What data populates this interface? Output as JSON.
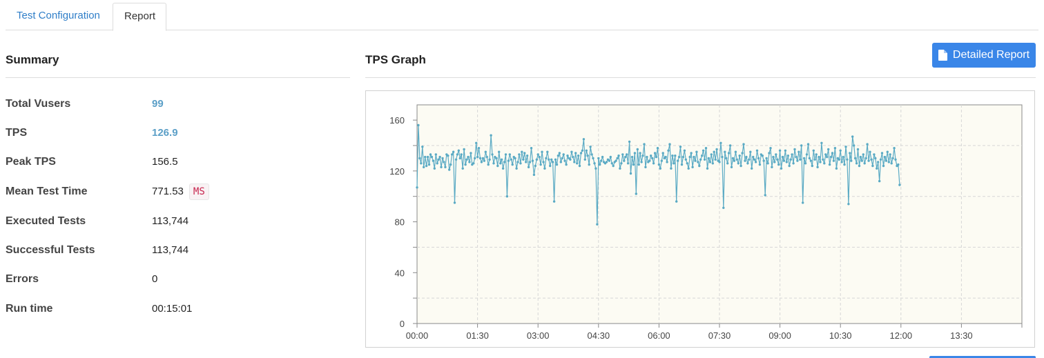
{
  "tabs": [
    {
      "label": "Test Configuration",
      "active": false
    },
    {
      "label": "Report",
      "active": true
    }
  ],
  "summary": {
    "title": "Summary",
    "rows": [
      {
        "label": "Total Vusers",
        "value": "99"
      },
      {
        "label": "TPS",
        "value": "126.9"
      },
      {
        "label": "Peak TPS",
        "value": "156.5"
      },
      {
        "label": "Mean Test Time",
        "value": "771.53",
        "unit": "MS"
      },
      {
        "label": "Executed Tests",
        "value": "113,744"
      },
      {
        "label": "Successful Tests",
        "value": "113,744"
      },
      {
        "label": "Errors",
        "value": "0"
      },
      {
        "label": "Run time",
        "value": "00:15:01"
      }
    ]
  },
  "graph": {
    "title": "TPS Graph",
    "detailed_report_label": "Detailed Report",
    "icons": {
      "report_button": "document-icon"
    }
  },
  "colors": {
    "accent": "#3a86e8",
    "link_value": "#5b9fc7",
    "series_line": "#5aaac4",
    "plot_background": "#fcfbf3",
    "unit_badge_text": "#c7254e"
  },
  "chart_data": {
    "type": "line",
    "title": "TPS Graph",
    "xlabel": "",
    "ylabel": "",
    "x_tick_labels": [
      "00:00",
      "01:30",
      "03:00",
      "04:30",
      "06:00",
      "07:30",
      "09:00",
      "10:30",
      "12:00",
      "13:30"
    ],
    "y_ticks": [
      0,
      40,
      80,
      120,
      160
    ],
    "ylim": [
      0,
      172
    ],
    "x_range_seconds": [
      0,
      900
    ],
    "grid": true,
    "sample_interval_seconds": 2,
    "series": [
      {
        "values": [
          107,
          156,
          130,
          126,
          139,
          123,
          131,
          124,
          131,
          125,
          133,
          131,
          128,
          122,
          133,
          126,
          129,
          131,
          123,
          130,
          127,
          123,
          133,
          132,
          121,
          125,
          133,
          135,
          95,
          129,
          133,
          136,
          130,
          133,
          122,
          137,
          125,
          129,
          131,
          127,
          134,
          125,
          126,
          130,
          142,
          131,
          138,
          130,
          127,
          130,
          128,
          135,
          131,
          125,
          129,
          148,
          133,
          126,
          131,
          130,
          124,
          135,
          126,
          129,
          122,
          127,
          133,
          100,
          128,
          133,
          129,
          125,
          131,
          130,
          122,
          127,
          133,
          126,
          135,
          129,
          134,
          127,
          132,
          123,
          127,
          138,
          128,
          117,
          124,
          129,
          133,
          131,
          125,
          135,
          127,
          122,
          130,
          135,
          129,
          124,
          129,
          127,
          96,
          129,
          125,
          132,
          134,
          127,
          130,
          133,
          128,
          125,
          132,
          130,
          129,
          135,
          131,
          127,
          134,
          126,
          132,
          124,
          134,
          136,
          145,
          129,
          136,
          132,
          125,
          139,
          133,
          130,
          126,
          122,
          78,
          130,
          125,
          128,
          131,
          127,
          126,
          127,
          129,
          128,
          131,
          126,
          124,
          127,
          128,
          130,
          132,
          122,
          126,
          133,
          128,
          131,
          133,
          126,
          143,
          118,
          131,
          125,
          134,
          102,
          137,
          125,
          134,
          127,
          132,
          141,
          123,
          131,
          127,
          128,
          132,
          130,
          126,
          134,
          131,
          138,
          125,
          122,
          128,
          134,
          130,
          131,
          127,
          136,
          141,
          122,
          132,
          126,
          132,
          96,
          128,
          131,
          139,
          125,
          131,
          136,
          129,
          126,
          122,
          131,
          134,
          123,
          131,
          128,
          135,
          127,
          124,
          129,
          132,
          136,
          129,
          138,
          122,
          130,
          127,
          133,
          126,
          135,
          129,
          137,
          128,
          127,
          142,
          131,
          91,
          135,
          130,
          126,
          134,
          140,
          123,
          130,
          128,
          135,
          129,
          126,
          132,
          124,
          134,
          141,
          128,
          131,
          126,
          129,
          135,
          122,
          131,
          129,
          127,
          136,
          130,
          125,
          133,
          132,
          128,
          101,
          130,
          126,
          134,
          138,
          123,
          131,
          127,
          133,
          129,
          125,
          136,
          122,
          131,
          128,
          136,
          127,
          132,
          124,
          129,
          133,
          126,
          137,
          131,
          128,
          135,
          129,
          140,
          95,
          130,
          126,
          133,
          141,
          130,
          128,
          124,
          136,
          129,
          133,
          123,
          131,
          127,
          142,
          129,
          126,
          133,
          131,
          137,
          125,
          131,
          134,
          128,
          138,
          122,
          130,
          129,
          136,
          127,
          131,
          125,
          139,
          129,
          94,
          134,
          128,
          147,
          140,
          130,
          126,
          137,
          124,
          131,
          128,
          133,
          126,
          130,
          141,
          128,
          135,
          129,
          124,
          133,
          130,
          122,
          127,
          112,
          129,
          134,
          124,
          131,
          128,
          135,
          127,
          133,
          126,
          130,
          138,
          129,
          124,
          125,
          109
        ]
      }
    ]
  }
}
